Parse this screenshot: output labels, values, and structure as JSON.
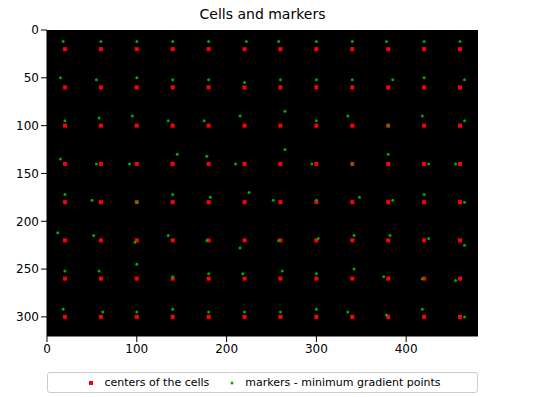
{
  "chart_data": {
    "type": "scatter",
    "title": "Cells and markers",
    "xlim": [
      0,
      480
    ],
    "xticks": [
      0,
      100,
      200,
      300,
      400
    ],
    "ylim": [
      0,
      320
    ],
    "yticks": [
      0,
      50,
      100,
      150,
      200,
      250,
      300
    ],
    "grid": false,
    "legend": "bottom",
    "series": [
      {
        "name": "centers of the cells",
        "color": "#ff0000",
        "marker": "square",
        "values": [
          [
            20,
            20
          ],
          [
            60,
            20
          ],
          [
            100,
            20
          ],
          [
            140,
            20
          ],
          [
            180,
            20
          ],
          [
            220,
            20
          ],
          [
            260,
            20
          ],
          [
            300,
            20
          ],
          [
            340,
            20
          ],
          [
            380,
            20
          ],
          [
            420,
            20
          ],
          [
            460,
            20
          ],
          [
            20,
            60
          ],
          [
            60,
            60
          ],
          [
            100,
            60
          ],
          [
            140,
            60
          ],
          [
            180,
            60
          ],
          [
            220,
            60
          ],
          [
            260,
            60
          ],
          [
            300,
            60
          ],
          [
            340,
            60
          ],
          [
            380,
            60
          ],
          [
            420,
            60
          ],
          [
            460,
            60
          ],
          [
            20,
            100
          ],
          [
            60,
            100
          ],
          [
            100,
            100
          ],
          [
            140,
            100
          ],
          [
            180,
            100
          ],
          [
            220,
            100
          ],
          [
            260,
            100
          ],
          [
            300,
            100
          ],
          [
            340,
            100
          ],
          [
            380,
            100
          ],
          [
            420,
            100
          ],
          [
            460,
            100
          ],
          [
            20,
            140
          ],
          [
            60,
            140
          ],
          [
            100,
            140
          ],
          [
            140,
            140
          ],
          [
            180,
            140
          ],
          [
            220,
            140
          ],
          [
            260,
            140
          ],
          [
            300,
            140
          ],
          [
            340,
            140
          ],
          [
            380,
            140
          ],
          [
            420,
            140
          ],
          [
            460,
            140
          ],
          [
            20,
            180
          ],
          [
            60,
            180
          ],
          [
            100,
            180
          ],
          [
            140,
            180
          ],
          [
            180,
            180
          ],
          [
            220,
            180
          ],
          [
            260,
            180
          ],
          [
            300,
            180
          ],
          [
            340,
            180
          ],
          [
            380,
            180
          ],
          [
            420,
            180
          ],
          [
            460,
            180
          ],
          [
            20,
            220
          ],
          [
            60,
            220
          ],
          [
            100,
            220
          ],
          [
            140,
            220
          ],
          [
            180,
            220
          ],
          [
            220,
            220
          ],
          [
            260,
            220
          ],
          [
            300,
            220
          ],
          [
            340,
            220
          ],
          [
            380,
            220
          ],
          [
            420,
            220
          ],
          [
            460,
            220
          ],
          [
            20,
            260
          ],
          [
            60,
            260
          ],
          [
            100,
            260
          ],
          [
            140,
            260
          ],
          [
            180,
            260
          ],
          [
            220,
            260
          ],
          [
            260,
            260
          ],
          [
            300,
            260
          ],
          [
            340,
            260
          ],
          [
            380,
            260
          ],
          [
            420,
            260
          ],
          [
            460,
            260
          ],
          [
            20,
            300
          ],
          [
            60,
            300
          ],
          [
            100,
            300
          ],
          [
            140,
            300
          ],
          [
            180,
            300
          ],
          [
            220,
            300
          ],
          [
            260,
            300
          ],
          [
            300,
            300
          ],
          [
            340,
            300
          ],
          [
            380,
            300
          ],
          [
            420,
            300
          ],
          [
            460,
            300
          ]
        ]
      },
      {
        "name": "markers - minimum gradient points",
        "color": "#00aa00",
        "marker": "circle",
        "values": [
          [
            18,
            12
          ],
          [
            60,
            12
          ],
          [
            100,
            12
          ],
          [
            140,
            12
          ],
          [
            180,
            12
          ],
          [
            222,
            12
          ],
          [
            258,
            12
          ],
          [
            300,
            12
          ],
          [
            340,
            12
          ],
          [
            378,
            12
          ],
          [
            420,
            12
          ],
          [
            460,
            12
          ],
          [
            15,
            50
          ],
          [
            55,
            52
          ],
          [
            100,
            50
          ],
          [
            140,
            52
          ],
          [
            180,
            52
          ],
          [
            220,
            55
          ],
          [
            260,
            52
          ],
          [
            300,
            52
          ],
          [
            340,
            52
          ],
          [
            385,
            52
          ],
          [
            420,
            50
          ],
          [
            465,
            52
          ],
          [
            20,
            95
          ],
          [
            58,
            92
          ],
          [
            95,
            90
          ],
          [
            135,
            95
          ],
          [
            175,
            95
          ],
          [
            215,
            90
          ],
          [
            265,
            85
          ],
          [
            300,
            95
          ],
          [
            335,
            90
          ],
          [
            380,
            100
          ],
          [
            418,
            90
          ],
          [
            465,
            95
          ],
          [
            15,
            135
          ],
          [
            55,
            140
          ],
          [
            92,
            140
          ],
          [
            145,
            130
          ],
          [
            178,
            132
          ],
          [
            210,
            140
          ],
          [
            265,
            125
          ],
          [
            295,
            140
          ],
          [
            340,
            140
          ],
          [
            380,
            130
          ],
          [
            425,
            140
          ],
          [
            455,
            140
          ],
          [
            20,
            172
          ],
          [
            50,
            178
          ],
          [
            100,
            180
          ],
          [
            140,
            172
          ],
          [
            182,
            175
          ],
          [
            225,
            170
          ],
          [
            252,
            178
          ],
          [
            300,
            178
          ],
          [
            348,
            175
          ],
          [
            385,
            178
          ],
          [
            420,
            172
          ],
          [
            465,
            180
          ],
          [
            12,
            212
          ],
          [
            52,
            215
          ],
          [
            98,
            222
          ],
          [
            135,
            215
          ],
          [
            178,
            220
          ],
          [
            215,
            228
          ],
          [
            258,
            220
          ],
          [
            302,
            218
          ],
          [
            342,
            215
          ],
          [
            382,
            215
          ],
          [
            425,
            218
          ],
          [
            465,
            225
          ],
          [
            20,
            252
          ],
          [
            58,
            252
          ],
          [
            100,
            245
          ],
          [
            140,
            258
          ],
          [
            180,
            255
          ],
          [
            218,
            255
          ],
          [
            262,
            252
          ],
          [
            300,
            255
          ],
          [
            342,
            250
          ],
          [
            375,
            258
          ],
          [
            418,
            260
          ],
          [
            455,
            262
          ],
          [
            18,
            292
          ],
          [
            62,
            295
          ],
          [
            100,
            295
          ],
          [
            140,
            292
          ],
          [
            180,
            295
          ],
          [
            220,
            295
          ],
          [
            260,
            295
          ],
          [
            300,
            292
          ],
          [
            335,
            295
          ],
          [
            378,
            298
          ],
          [
            418,
            292
          ],
          [
            465,
            300
          ]
        ]
      }
    ]
  }
}
